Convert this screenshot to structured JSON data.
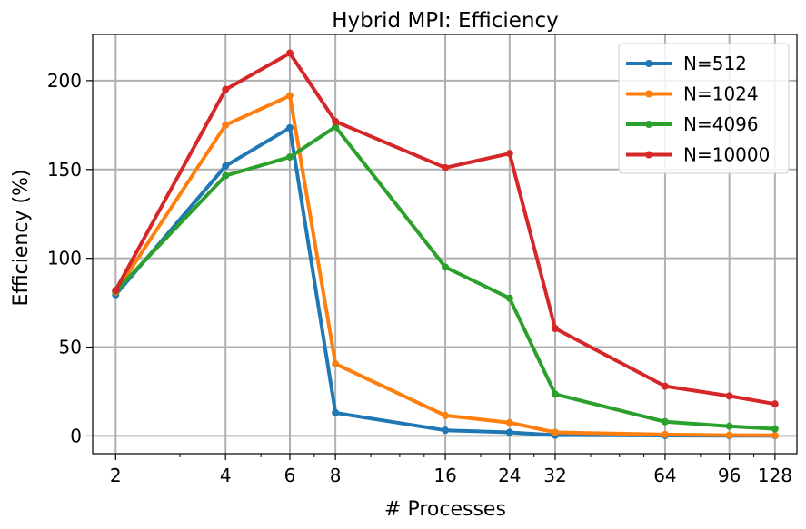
{
  "chart_data": {
    "type": "line",
    "title": "Hybrid MPI: Efficiency",
    "xlabel": "# Processes",
    "ylabel": "Efficiency (%)",
    "x_scale": "log2",
    "x": [
      2,
      4,
      6,
      8,
      16,
      24,
      32,
      64,
      96,
      128
    ],
    "x_tick_labels": [
      "2",
      "4",
      "6",
      "8",
      "16",
      "24",
      "32",
      "64",
      "96",
      "128"
    ],
    "y_ticks": [
      0,
      50,
      100,
      150,
      200
    ],
    "y_tick_labels": [
      "0",
      "50",
      "100",
      "150",
      "200"
    ],
    "ylim": [
      -10,
      226
    ],
    "grid": true,
    "legend_position": "top-right",
    "series": [
      {
        "name": "N=512",
        "color": "#1f77b4",
        "values": [
          79.5,
          152,
          173.5,
          13,
          3.2,
          2,
          0.4,
          0.2,
          0.1,
          0.1
        ]
      },
      {
        "name": "N=1024",
        "color": "#ff7f0e",
        "values": [
          81,
          175,
          191.5,
          40.5,
          11.5,
          7.5,
          2,
          0.8,
          0.4,
          0.3
        ]
      },
      {
        "name": "N=4096",
        "color": "#2ca02c",
        "values": [
          81.5,
          146.5,
          157,
          174,
          95,
          77.5,
          23.5,
          8,
          5.5,
          4
        ]
      },
      {
        "name": "N=10000",
        "color": "#d62728",
        "values": [
          82,
          195,
          215.5,
          177,
          151,
          159,
          60.5,
          28,
          22.5,
          18
        ]
      }
    ]
  }
}
